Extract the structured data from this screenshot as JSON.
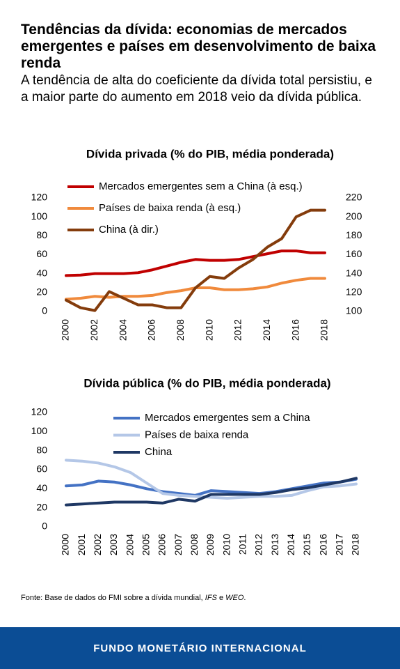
{
  "header": {
    "title": "Tendências da dívida: economias de mercados emergentes e países em desenvolvimento de baixa renda",
    "subtitle": "A tendência de alta do coeficiente da dívida total persistiu, e a maior parte do aumento em 2018 veio da dívida pública."
  },
  "chart_data": [
    {
      "type": "line",
      "title": "Dívida privada (% do PIB, média ponderada)",
      "x": [
        2000,
        2001,
        2002,
        2003,
        2004,
        2005,
        2006,
        2007,
        2008,
        2009,
        2010,
        2011,
        2012,
        2013,
        2014,
        2015,
        2016,
        2017,
        2018
      ],
      "xlim": [
        2000,
        2018
      ],
      "xticks": [
        2000,
        2002,
        2004,
        2006,
        2008,
        2010,
        2012,
        2014,
        2016,
        2018
      ],
      "ylim": [
        0,
        120
      ],
      "yticks": [
        0,
        20,
        40,
        60,
        80,
        100,
        120
      ],
      "y2lim": [
        100,
        220
      ],
      "y2ticks": [
        100,
        120,
        140,
        160,
        180,
        200,
        220
      ],
      "legend": "top-left",
      "series": [
        {
          "name": "Mercados emergentes sem a China (à esq.)",
          "color": "#c00000",
          "values": [
            38,
            38.5,
            40,
            40,
            40,
            41,
            44,
            48,
            52,
            55,
            54,
            54,
            55,
            58,
            61,
            64,
            64,
            62,
            62
          ]
        },
        {
          "name": "Países de baixa renda (à esq.)",
          "color": "#f08a3c",
          "values": [
            13,
            14,
            16,
            15,
            16,
            16,
            17,
            20,
            22,
            25,
            25,
            23,
            23,
            24,
            26,
            30,
            33,
            35,
            35
          ]
        },
        {
          "name": "China (à dir.)",
          "color": "#843c0c",
          "axis": "y2",
          "values": [
            112,
            104,
            101,
            121,
            114,
            107,
            107,
            104,
            104,
            125,
            137,
            135,
            146,
            155,
            168,
            177,
            200,
            207,
            207
          ]
        }
      ]
    },
    {
      "type": "line",
      "title": "Dívida pública (% do PIB, média ponderada)",
      "x": [
        2000,
        2001,
        2002,
        2003,
        2004,
        2005,
        2006,
        2007,
        2008,
        2009,
        2010,
        2011,
        2012,
        2013,
        2014,
        2015,
        2016,
        2017,
        2018
      ],
      "xlim": [
        2000,
        2018
      ],
      "xticks": [
        2000,
        2001,
        2002,
        2003,
        2004,
        2005,
        2006,
        2007,
        2008,
        2009,
        2010,
        2011,
        2012,
        2013,
        2014,
        2015,
        2016,
        2017,
        2018
      ],
      "ylim": [
        0,
        120
      ],
      "yticks": [
        0,
        20,
        40,
        60,
        80,
        100,
        120
      ],
      "legend": "top-left",
      "series": [
        {
          "name": "Mercados emergentes sem a China",
          "color": "#4472c4",
          "values": [
            43,
            44,
            48,
            47,
            44,
            40,
            37,
            35,
            33,
            38,
            37,
            36,
            35,
            37,
            40,
            43,
            46,
            47,
            50
          ]
        },
        {
          "name": "Países de baixa renda",
          "color": "#b4c7e7",
          "values": [
            70,
            69,
            67,
            63,
            57,
            46,
            35,
            33,
            32,
            31,
            30,
            31,
            32,
            32,
            33,
            38,
            42,
            43,
            45
          ]
        },
        {
          "name": "China",
          "color": "#1f3864",
          "values": [
            23,
            24,
            25,
            26,
            26,
            26,
            25,
            29,
            27,
            34,
            34,
            34,
            34,
            36,
            39,
            41,
            44,
            47,
            51
          ]
        }
      ]
    }
  ],
  "source": [
    "Fonte: Base de dados do FMI sobre a dívida mundial, ",
    "IFS",
    " e ",
    "WEO",
    "."
  ],
  "footer": "FUNDO MONETÁRIO INTERNACIONAL"
}
